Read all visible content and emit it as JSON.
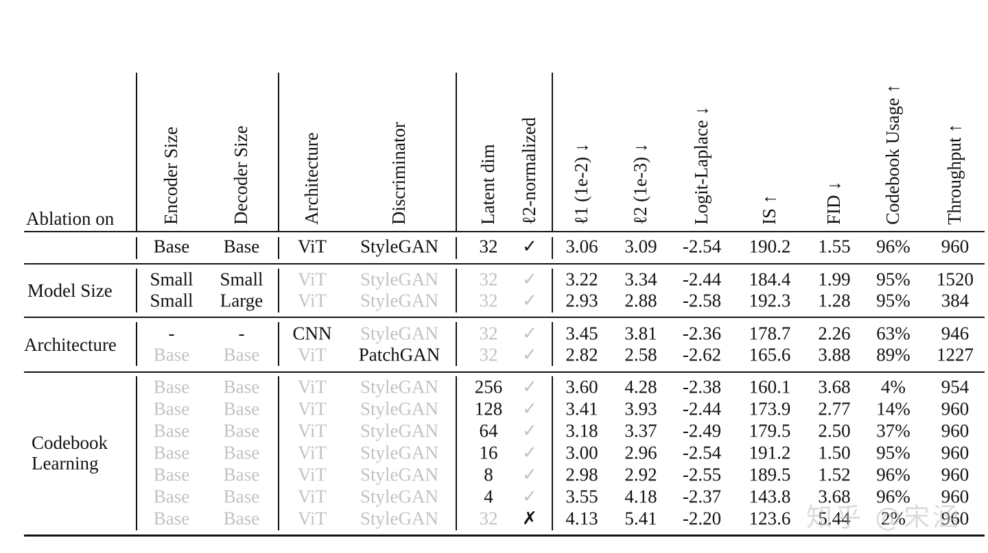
{
  "header": {
    "ablation_on": "Ablation on",
    "columns": [
      "Encoder Size",
      "Decoder Size",
      "Architecture",
      "Discriminator",
      "Latent dim",
      "ℓ2-normalized",
      "ℓ1 (1e-2) ↓",
      "ℓ2 (1e-3) ↓",
      "Logit-Laplace ↓",
      "IS ↑",
      "FID ↓",
      "Codebook Usage ↑",
      "Throughput ↑"
    ]
  },
  "groups": [
    {
      "label": "",
      "rows": [
        {
          "cells": [
            "Base",
            "Base",
            "ViT",
            "StyleGAN",
            "32",
            "✓",
            "3.06",
            "3.09",
            "-2.54",
            "190.2",
            "1.55",
            "96%",
            "960"
          ],
          "grey": []
        }
      ]
    },
    {
      "label": "Model Size",
      "rows": [
        {
          "cells": [
            "Small",
            "Small",
            "ViT",
            "StyleGAN",
            "32",
            "✓",
            "3.22",
            "3.34",
            "-2.44",
            "184.4",
            "1.99",
            "95%",
            "1520"
          ],
          "grey": [
            2,
            3,
            4,
            5
          ]
        },
        {
          "cells": [
            "Small",
            "Large",
            "ViT",
            "StyleGAN",
            "32",
            "✓",
            "2.93",
            "2.88",
            "-2.58",
            "192.3",
            "1.28",
            "95%",
            "384"
          ],
          "grey": [
            2,
            3,
            4,
            5
          ]
        }
      ]
    },
    {
      "label": "Architecture",
      "rows": [
        {
          "cells": [
            "-",
            "-",
            "CNN",
            "StyleGAN",
            "32",
            "✓",
            "3.45",
            "3.81",
            "-2.36",
            "178.7",
            "2.26",
            "63%",
            "946"
          ],
          "grey": [
            3,
            4,
            5
          ]
        },
        {
          "cells": [
            "Base",
            "Base",
            "ViT",
            "PatchGAN",
            "32",
            "✓",
            "2.82",
            "2.58",
            "-2.62",
            "165.6",
            "3.88",
            "89%",
            "1227"
          ],
          "grey": [
            0,
            1,
            2,
            4,
            5
          ]
        }
      ]
    },
    {
      "label": "Codebook\nLearning",
      "rows": [
        {
          "cells": [
            "Base",
            "Base",
            "ViT",
            "StyleGAN",
            "256",
            "✓",
            "3.60",
            "4.28",
            "-2.38",
            "160.1",
            "3.68",
            "4%",
            "954"
          ],
          "grey": [
            0,
            1,
            2,
            3,
            5
          ]
        },
        {
          "cells": [
            "Base",
            "Base",
            "ViT",
            "StyleGAN",
            "128",
            "✓",
            "3.41",
            "3.93",
            "-2.44",
            "173.9",
            "2.77",
            "14%",
            "960"
          ],
          "grey": [
            0,
            1,
            2,
            3,
            5
          ]
        },
        {
          "cells": [
            "Base",
            "Base",
            "ViT",
            "StyleGAN",
            "64",
            "✓",
            "3.18",
            "3.37",
            "-2.49",
            "179.5",
            "2.50",
            "37%",
            "960"
          ],
          "grey": [
            0,
            1,
            2,
            3,
            5
          ]
        },
        {
          "cells": [
            "Base",
            "Base",
            "ViT",
            "StyleGAN",
            "16",
            "✓",
            "3.00",
            "2.96",
            "-2.54",
            "191.2",
            "1.50",
            "95%",
            "960"
          ],
          "grey": [
            0,
            1,
            2,
            3,
            5
          ]
        },
        {
          "cells": [
            "Base",
            "Base",
            "ViT",
            "StyleGAN",
            "8",
            "✓",
            "2.98",
            "2.92",
            "-2.55",
            "189.5",
            "1.52",
            "96%",
            "960"
          ],
          "grey": [
            0,
            1,
            2,
            3,
            5
          ]
        },
        {
          "cells": [
            "Base",
            "Base",
            "ViT",
            "StyleGAN",
            "4",
            "✓",
            "3.55",
            "4.18",
            "-2.37",
            "143.8",
            "3.68",
            "96%",
            "960"
          ],
          "grey": [
            0,
            1,
            2,
            3,
            5
          ]
        },
        {
          "cells": [
            "Base",
            "Base",
            "ViT",
            "StyleGAN",
            "32",
            "✗",
            "4.13",
            "5.41",
            "-2.20",
            "123.6",
            "5.44",
            "2%",
            "960"
          ],
          "grey": [
            0,
            1,
            2,
            3,
            4
          ]
        }
      ]
    }
  ],
  "watermark": "知乎 @宋涵"
}
